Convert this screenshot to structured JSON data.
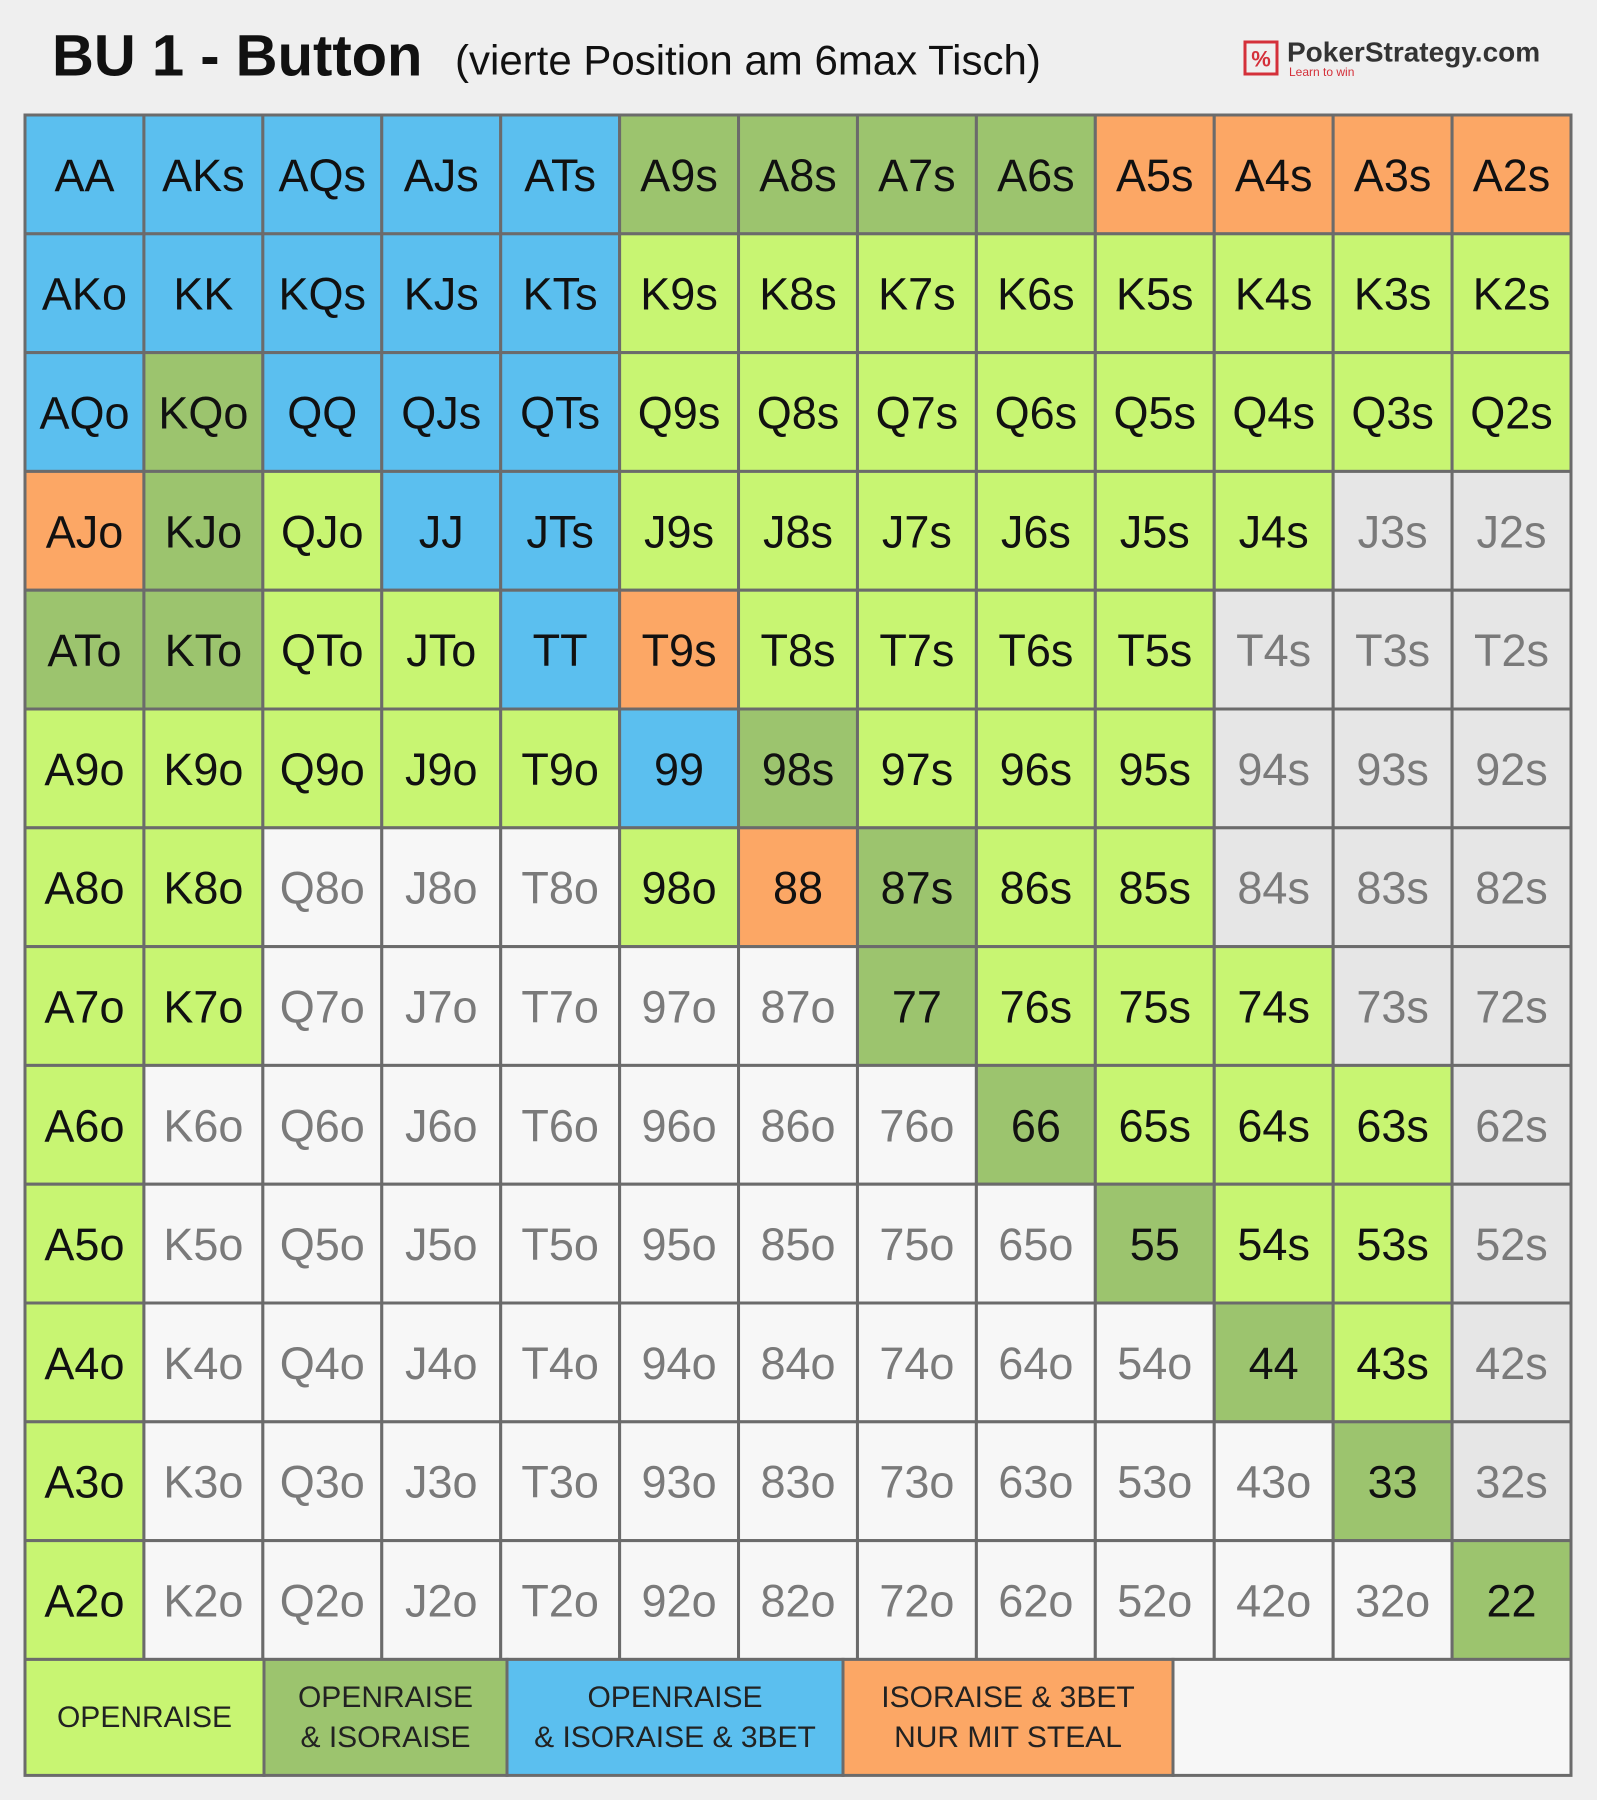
{
  "header": {
    "title": "BU 1 - Button",
    "subtitle": "(vierte Position am 6max Tisch)",
    "logo": {
      "icon": "%",
      "brand": "PokerStrategy.com",
      "tagline": "Learn to win"
    }
  },
  "grid": {
    "rows": [
      [
        {
          "label": "AA",
          "color": "#5bbfef"
        },
        {
          "label": "AKs",
          "color": "#5bbfef"
        },
        {
          "label": "AQs",
          "color": "#5bbfef"
        },
        {
          "label": "AJs",
          "color": "#5bbfef"
        },
        {
          "label": "ATs",
          "color": "#5bbfef"
        },
        {
          "label": "A9s",
          "color": "#9cc46e"
        },
        {
          "label": "A8s",
          "color": "#9cc46e"
        },
        {
          "label": "A7s",
          "color": "#9cc46e"
        },
        {
          "label": "A6s",
          "color": "#9cc46e"
        },
        {
          "label": "A5s",
          "color": "#fca765"
        },
        {
          "label": "A4s",
          "color": "#fca765"
        },
        {
          "label": "A3s",
          "color": "#fca765"
        },
        {
          "label": "A2s",
          "color": "#fca765"
        }
      ],
      [
        {
          "label": "AKo",
          "color": "#5bbfef"
        },
        {
          "label": "KK",
          "color": "#5bbfef"
        },
        {
          "label": "KQs",
          "color": "#5bbfef"
        },
        {
          "label": "KJs",
          "color": "#5bbfef"
        },
        {
          "label": "KTs",
          "color": "#5bbfef"
        },
        {
          "label": "K9s",
          "color": "#c8f572"
        },
        {
          "label": "K8s",
          "color": "#c8f572"
        },
        {
          "label": "K7s",
          "color": "#c8f572"
        },
        {
          "label": "K6s",
          "color": "#c8f572"
        },
        {
          "label": "K5s",
          "color": "#c8f572"
        },
        {
          "label": "K4s",
          "color": "#c8f572"
        },
        {
          "label": "K3s",
          "color": "#c8f572"
        },
        {
          "label": "K2s",
          "color": "#c8f572"
        }
      ],
      [
        {
          "label": "AQo",
          "color": "#5bbfef"
        },
        {
          "label": "KQo",
          "color": "#9cc46e"
        },
        {
          "label": "QQ",
          "color": "#5bbfef"
        },
        {
          "label": "QJs",
          "color": "#5bbfef"
        },
        {
          "label": "QTs",
          "color": "#5bbfef"
        },
        {
          "label": "Q9s",
          "color": "#c8f572"
        },
        {
          "label": "Q8s",
          "color": "#c8f572"
        },
        {
          "label": "Q7s",
          "color": "#c8f572"
        },
        {
          "label": "Q6s",
          "color": "#c8f572"
        },
        {
          "label": "Q5s",
          "color": "#c8f572"
        },
        {
          "label": "Q4s",
          "color": "#c8f572"
        },
        {
          "label": "Q3s",
          "color": "#c8f572"
        },
        {
          "label": "Q2s",
          "color": "#c8f572"
        }
      ],
      [
        {
          "label": "AJo",
          "color": "#fca765"
        },
        {
          "label": "KJo",
          "color": "#9cc46e"
        },
        {
          "label": "QJo",
          "color": "#c8f572"
        },
        {
          "label": "JJ",
          "color": "#5bbfef"
        },
        {
          "label": "JTs",
          "color": "#5bbfef"
        },
        {
          "label": "J9s",
          "color": "#c8f572"
        },
        {
          "label": "J8s",
          "color": "#c8f572"
        },
        {
          "label": "J7s",
          "color": "#c8f572"
        },
        {
          "label": "J6s",
          "color": "#c8f572"
        },
        {
          "label": "J5s",
          "color": "#c8f572"
        },
        {
          "label": "J4s",
          "color": "#c8f572"
        },
        {
          "label": "J3s",
          "color": "#e6e6e6"
        },
        {
          "label": "J2s",
          "color": "#e6e6e6"
        }
      ],
      [
        {
          "label": "ATo",
          "color": "#9cc46e"
        },
        {
          "label": "KTo",
          "color": "#9cc46e"
        },
        {
          "label": "QTo",
          "color": "#c8f572"
        },
        {
          "label": "JTo",
          "color": "#c8f572"
        },
        {
          "label": "TT",
          "color": "#5bbfef"
        },
        {
          "label": "T9s",
          "color": "#fca765"
        },
        {
          "label": "T8s",
          "color": "#c8f572"
        },
        {
          "label": "T7s",
          "color": "#c8f572"
        },
        {
          "label": "T6s",
          "color": "#c8f572"
        },
        {
          "label": "T5s",
          "color": "#c8f572"
        },
        {
          "label": "T4s",
          "color": "#e6e6e6"
        },
        {
          "label": "T3s",
          "color": "#e6e6e6"
        },
        {
          "label": "T2s",
          "color": "#e6e6e6"
        }
      ],
      [
        {
          "label": "A9o",
          "color": "#c8f572"
        },
        {
          "label": "K9o",
          "color": "#c8f572"
        },
        {
          "label": "Q9o",
          "color": "#c8f572"
        },
        {
          "label": "J9o",
          "color": "#c8f572"
        },
        {
          "label": "T9o",
          "color": "#c8f572"
        },
        {
          "label": "99",
          "color": "#5bbfef"
        },
        {
          "label": "98s",
          "color": "#9cc46e"
        },
        {
          "label": "97s",
          "color": "#c8f572"
        },
        {
          "label": "96s",
          "color": "#c8f572"
        },
        {
          "label": "95s",
          "color": "#c8f572"
        },
        {
          "label": "94s",
          "color": "#e6e6e6"
        },
        {
          "label": "93s",
          "color": "#e6e6e6"
        },
        {
          "label": "92s",
          "color": "#e6e6e6"
        }
      ],
      [
        {
          "label": "A8o",
          "color": "#c8f572"
        },
        {
          "label": "K8o",
          "color": "#c8f572"
        },
        {
          "label": "Q8o",
          "color": "#f7f7f7"
        },
        {
          "label": "J8o",
          "color": "#f7f7f7"
        },
        {
          "label": "T8o",
          "color": "#f7f7f7"
        },
        {
          "label": "98o",
          "color": "#c8f572"
        },
        {
          "label": "88",
          "color": "#fca765"
        },
        {
          "label": "87s",
          "color": "#9cc46e"
        },
        {
          "label": "86s",
          "color": "#c8f572"
        },
        {
          "label": "85s",
          "color": "#c8f572"
        },
        {
          "label": "84s",
          "color": "#e6e6e6"
        },
        {
          "label": "83s",
          "color": "#e6e6e6"
        },
        {
          "label": "82s",
          "color": "#e6e6e6"
        }
      ],
      [
        {
          "label": "A7o",
          "color": "#c8f572"
        },
        {
          "label": "K7o",
          "color": "#c8f572"
        },
        {
          "label": "Q7o",
          "color": "#f7f7f7"
        },
        {
          "label": "J7o",
          "color": "#f7f7f7"
        },
        {
          "label": "T7o",
          "color": "#f7f7f7"
        },
        {
          "label": "97o",
          "color": "#f7f7f7"
        },
        {
          "label": "87o",
          "color": "#f7f7f7"
        },
        {
          "label": "77",
          "color": "#9cc46e"
        },
        {
          "label": "76s",
          "color": "#c8f572"
        },
        {
          "label": "75s",
          "color": "#c8f572"
        },
        {
          "label": "74s",
          "color": "#c8f572"
        },
        {
          "label": "73s",
          "color": "#e6e6e6"
        },
        {
          "label": "72s",
          "color": "#e6e6e6"
        }
      ],
      [
        {
          "label": "A6o",
          "color": "#c8f572"
        },
        {
          "label": "K6o",
          "color": "#f7f7f7"
        },
        {
          "label": "Q6o",
          "color": "#f7f7f7"
        },
        {
          "label": "J6o",
          "color": "#f7f7f7"
        },
        {
          "label": "T6o",
          "color": "#f7f7f7"
        },
        {
          "label": "96o",
          "color": "#f7f7f7"
        },
        {
          "label": "86o",
          "color": "#f7f7f7"
        },
        {
          "label": "76o",
          "color": "#f7f7f7"
        },
        {
          "label": "66",
          "color": "#9cc46e"
        },
        {
          "label": "65s",
          "color": "#c8f572"
        },
        {
          "label": "64s",
          "color": "#c8f572"
        },
        {
          "label": "63s",
          "color": "#c8f572"
        },
        {
          "label": "62s",
          "color": "#e6e6e6"
        }
      ],
      [
        {
          "label": "A5o",
          "color": "#c8f572"
        },
        {
          "label": "K5o",
          "color": "#f7f7f7"
        },
        {
          "label": "Q5o",
          "color": "#f7f7f7"
        },
        {
          "label": "J5o",
          "color": "#f7f7f7"
        },
        {
          "label": "T5o",
          "color": "#f7f7f7"
        },
        {
          "label": "95o",
          "color": "#f7f7f7"
        },
        {
          "label": "85o",
          "color": "#f7f7f7"
        },
        {
          "label": "75o",
          "color": "#f7f7f7"
        },
        {
          "label": "65o",
          "color": "#f7f7f7"
        },
        {
          "label": "55",
          "color": "#9cc46e"
        },
        {
          "label": "54s",
          "color": "#c8f572"
        },
        {
          "label": "53s",
          "color": "#c8f572"
        },
        {
          "label": "52s",
          "color": "#e6e6e6"
        }
      ],
      [
        {
          "label": "A4o",
          "color": "#c8f572"
        },
        {
          "label": "K4o",
          "color": "#f7f7f7"
        },
        {
          "label": "Q4o",
          "color": "#f7f7f7"
        },
        {
          "label": "J4o",
          "color": "#f7f7f7"
        },
        {
          "label": "T4o",
          "color": "#f7f7f7"
        },
        {
          "label": "94o",
          "color": "#f7f7f7"
        },
        {
          "label": "84o",
          "color": "#f7f7f7"
        },
        {
          "label": "74o",
          "color": "#f7f7f7"
        },
        {
          "label": "64o",
          "color": "#f7f7f7"
        },
        {
          "label": "54o",
          "color": "#f7f7f7"
        },
        {
          "label": "44",
          "color": "#9cc46e"
        },
        {
          "label": "43s",
          "color": "#c8f572"
        },
        {
          "label": "42s",
          "color": "#e6e6e6"
        }
      ],
      [
        {
          "label": "A3o",
          "color": "#c8f572"
        },
        {
          "label": "K3o",
          "color": "#f7f7f7"
        },
        {
          "label": "Q3o",
          "color": "#f7f7f7"
        },
        {
          "label": "J3o",
          "color": "#f7f7f7"
        },
        {
          "label": "T3o",
          "color": "#f7f7f7"
        },
        {
          "label": "93o",
          "color": "#f7f7f7"
        },
        {
          "label": "83o",
          "color": "#f7f7f7"
        },
        {
          "label": "73o",
          "color": "#f7f7f7"
        },
        {
          "label": "63o",
          "color": "#f7f7f7"
        },
        {
          "label": "53o",
          "color": "#f7f7f7"
        },
        {
          "label": "43o",
          "color": "#f7f7f7"
        },
        {
          "label": "33",
          "color": "#9cc46e"
        },
        {
          "label": "32s",
          "color": "#e6e6e6"
        }
      ],
      [
        {
          "label": "A2o",
          "color": "#c8f572"
        },
        {
          "label": "K2o",
          "color": "#f7f7f7"
        },
        {
          "label": "Q2o",
          "color": "#f7f7f7"
        },
        {
          "label": "J2o",
          "color": "#f7f7f7"
        },
        {
          "label": "T2o",
          "color": "#f7f7f7"
        },
        {
          "label": "92o",
          "color": "#f7f7f7"
        },
        {
          "label": "82o",
          "color": "#f7f7f7"
        },
        {
          "label": "72o",
          "color": "#f7f7f7"
        },
        {
          "label": "62o",
          "color": "#f7f7f7"
        },
        {
          "label": "52o",
          "color": "#f7f7f7"
        },
        {
          "label": "42o",
          "color": "#f7f7f7"
        },
        {
          "label": "32o",
          "color": "#f7f7f7"
        },
        {
          "label": "22",
          "color": "#9cc46e"
        }
      ]
    ]
  },
  "legend": [
    {
      "lines": [
        "OPENRAISE"
      ],
      "color": "#c8f572"
    },
    {
      "lines": [
        "OPENRAISE",
        "& ISORAISE"
      ],
      "color": "#9cc46e"
    },
    {
      "lines": [
        "OPENRAISE",
        "& ISORAISE & 3BET"
      ],
      "color": "#5bbfef"
    },
    {
      "lines": [
        "ISORAISE & 3BET",
        "NUR MIT STEAL"
      ],
      "color": "#fca765"
    }
  ]
}
